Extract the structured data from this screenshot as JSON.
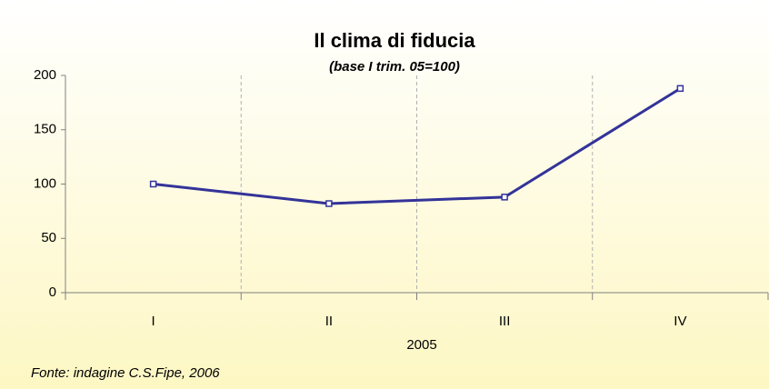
{
  "chart_data": {
    "type": "line",
    "title": "Il clima di fiducia",
    "subtitle": "(base I trim. 05=100)",
    "categories": [
      "I",
      "II",
      "III",
      "IV"
    ],
    "values": [
      100,
      82,
      88,
      188
    ],
    "color": "#333399",
    "xlabel": "2005",
    "source": "Fonte: indagine C.S.Fipe, 2006",
    "ylim": [
      0,
      200
    ],
    "yticks": [
      0,
      50,
      100,
      150,
      200
    ],
    "grid": true
  }
}
